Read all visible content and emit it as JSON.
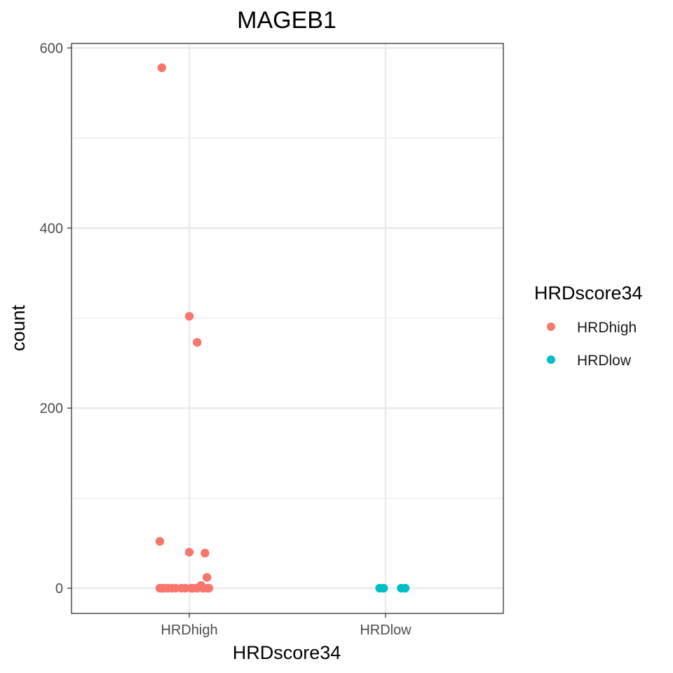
{
  "chart_data": {
    "type": "scatter",
    "title": "MAGEB1",
    "xlabel": "HRDscore34",
    "ylabel": "count",
    "categories": [
      "HRDhigh",
      "HRDlow"
    ],
    "ylim": [
      -28,
      605
    ],
    "yticks": [
      0,
      200,
      400,
      600
    ],
    "grid": true,
    "legend": {
      "title": "HRDscore34",
      "placement": "right",
      "entries": [
        "HRDhigh",
        "HRDlow"
      ]
    },
    "colors": {
      "HRDhigh": "#F8766D",
      "HRDlow": "#00BFC4"
    },
    "series": [
      {
        "name": "HRDhigh",
        "points": [
          {
            "x": 0.86,
            "y": 578
          },
          {
            "x": 1.0,
            "y": 302
          },
          {
            "x": 1.04,
            "y": 273
          },
          {
            "x": 0.85,
            "y": 52
          },
          {
            "x": 1.0,
            "y": 40
          },
          {
            "x": 1.08,
            "y": 39
          },
          {
            "x": 1.09,
            "y": 12
          },
          {
            "x": 1.06,
            "y": 3
          },
          {
            "x": 0.85,
            "y": 0
          },
          {
            "x": 0.86,
            "y": 0
          },
          {
            "x": 0.87,
            "y": 0
          },
          {
            "x": 0.89,
            "y": 0
          },
          {
            "x": 0.91,
            "y": 0
          },
          {
            "x": 0.93,
            "y": 0
          },
          {
            "x": 0.96,
            "y": 0
          },
          {
            "x": 0.98,
            "y": 0
          },
          {
            "x": 1.01,
            "y": 0
          },
          {
            "x": 1.02,
            "y": 0
          },
          {
            "x": 1.04,
            "y": 0
          },
          {
            "x": 1.07,
            "y": 0
          },
          {
            "x": 1.09,
            "y": 0
          },
          {
            "x": 1.1,
            "y": 0
          }
        ]
      },
      {
        "name": "HRDlow",
        "points": [
          {
            "x": 1.97,
            "y": 0
          },
          {
            "x": 1.99,
            "y": 0
          },
          {
            "x": 2.08,
            "y": 0
          },
          {
            "x": 2.1,
            "y": 0
          }
        ]
      }
    ]
  }
}
